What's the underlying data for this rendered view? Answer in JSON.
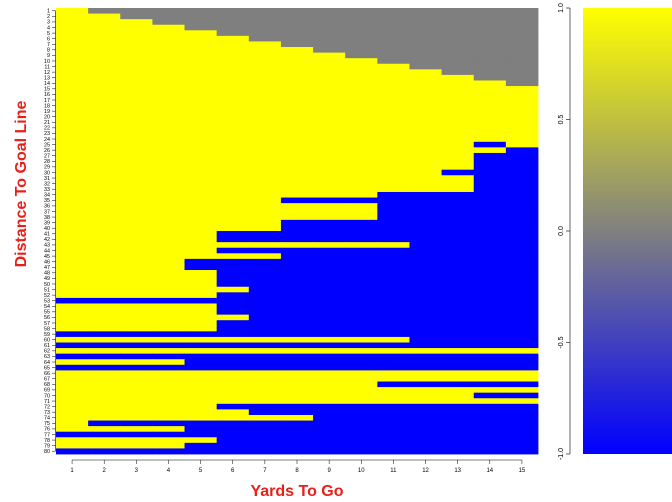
{
  "chart_data": {
    "type": "heatmap",
    "title": "",
    "xlabel": "Yards To Go",
    "ylabel": "Distance To Goal Line",
    "x_categories": [
      "1",
      "2",
      "3",
      "4",
      "5",
      "6",
      "7",
      "8",
      "9",
      "10",
      "11",
      "12",
      "13",
      "14",
      "15"
    ],
    "y_categories": [
      "1",
      "2",
      "3",
      "4",
      "5",
      "6",
      "7",
      "8",
      "9",
      "10",
      "11",
      "12",
      "13",
      "14",
      "15",
      "16",
      "17",
      "18",
      "19",
      "20",
      "21",
      "22",
      "23",
      "24",
      "25",
      "26",
      "27",
      "28",
      "29",
      "30",
      "31",
      "32",
      "33",
      "34",
      "35",
      "36",
      "37",
      "38",
      "39",
      "40",
      "41",
      "42",
      "43",
      "44",
      "45",
      "46",
      "47",
      "48",
      "49",
      "50",
      "51",
      "52",
      "53",
      "54",
      "55",
      "56",
      "57",
      "58",
      "59",
      "60",
      "61",
      "62",
      "63",
      "64",
      "65",
      "66",
      "67",
      "68",
      "69",
      "70",
      "71",
      "72",
      "73",
      "74",
      "75",
      "76",
      "77",
      "78",
      "79",
      "80"
    ],
    "value_legend": {
      "1": "yellow",
      "-1": "blue",
      "0": "gray (not possible: yards to go exceeds distance)"
    },
    "colorbar": {
      "range": [
        -1,
        1
      ],
      "ticks": [
        "1.0",
        "0.5",
        "0.0",
        "-0.5",
        "-1.0"
      ],
      "low_color": "#0000ff",
      "mid_color": "#808080",
      "high_color": "#ffff00"
    },
    "colors": {
      "yellow": "#ffff00",
      "blue": "#0000ff",
      "gray": "#7f7f7f",
      "title_red": "#e8201a"
    },
    "rows": [
      {
        "y": 1,
        "blue": [],
        "na_from": 2
      },
      {
        "y": 2,
        "blue": [],
        "na_from": 3
      },
      {
        "y": 3,
        "blue": [],
        "na_from": 4
      },
      {
        "y": 4,
        "blue": [],
        "na_from": 5
      },
      {
        "y": 5,
        "blue": [],
        "na_from": 6
      },
      {
        "y": 6,
        "blue": [],
        "na_from": 7
      },
      {
        "y": 7,
        "blue": [],
        "na_from": 8
      },
      {
        "y": 8,
        "blue": [],
        "na_from": 9
      },
      {
        "y": 9,
        "blue": [],
        "na_from": 10
      },
      {
        "y": 10,
        "blue": [],
        "na_from": 11
      },
      {
        "y": 11,
        "blue": [],
        "na_from": 12
      },
      {
        "y": 12,
        "blue": [],
        "na_from": 13
      },
      {
        "y": 13,
        "blue": [],
        "na_from": 14
      },
      {
        "y": 14,
        "blue": [],
        "na_from": 15
      },
      {
        "y": 25,
        "blue": [
          [
            14,
            14
          ]
        ]
      },
      {
        "y": 26,
        "blue": [
          [
            15,
            15
          ]
        ]
      },
      {
        "y": 27,
        "blue": [
          [
            14,
            15
          ]
        ]
      },
      {
        "y": 28,
        "blue": [
          [
            14,
            15
          ]
        ]
      },
      {
        "y": 29,
        "blue": [
          [
            14,
            15
          ]
        ]
      },
      {
        "y": 30,
        "blue": [
          [
            13,
            15
          ]
        ]
      },
      {
        "y": 31,
        "blue": [
          [
            14,
            15
          ]
        ]
      },
      {
        "y": 32,
        "blue": [
          [
            14,
            15
          ]
        ]
      },
      {
        "y": 33,
        "blue": [
          [
            14,
            15
          ]
        ]
      },
      {
        "y": 34,
        "blue": [
          [
            11,
            15
          ]
        ]
      },
      {
        "y": 35,
        "blue": [
          [
            8,
            15
          ]
        ]
      },
      {
        "y": 36,
        "blue": [
          [
            11,
            15
          ]
        ]
      },
      {
        "y": 37,
        "blue": [
          [
            11,
            12
          ],
          [
            13,
            15
          ]
        ]
      },
      {
        "y": 38,
        "blue": [
          [
            11,
            15
          ]
        ]
      },
      {
        "y": 39,
        "blue": [
          [
            8,
            15
          ]
        ]
      },
      {
        "y": 40,
        "blue": [
          [
            8,
            15
          ]
        ]
      },
      {
        "y": 41,
        "blue": [
          [
            6,
            15
          ]
        ]
      },
      {
        "y": 42,
        "blue": [
          [
            6,
            15
          ]
        ]
      },
      {
        "y": 43,
        "blue": [
          [
            12,
            15
          ]
        ]
      },
      {
        "y": 44,
        "blue": [
          [
            6,
            15
          ]
        ]
      },
      {
        "y": 45,
        "blue": [
          [
            8,
            15
          ]
        ]
      },
      {
        "y": 46,
        "blue": [
          [
            5,
            15
          ]
        ]
      },
      {
        "y": 47,
        "blue": [
          [
            5,
            15
          ]
        ]
      },
      {
        "y": 48,
        "blue": [
          [
            6,
            15
          ]
        ]
      },
      {
        "y": 49,
        "blue": [
          [
            6,
            15
          ]
        ]
      },
      {
        "y": 50,
        "blue": [
          [
            6,
            15
          ]
        ]
      },
      {
        "y": 51,
        "blue": [
          [
            7,
            15
          ]
        ]
      },
      {
        "y": 52,
        "blue": [
          [
            6,
            15
          ]
        ]
      },
      {
        "y": 53,
        "blue": [
          [
            1,
            15
          ]
        ]
      },
      {
        "y": 54,
        "blue": [
          [
            6,
            15
          ]
        ]
      },
      {
        "y": 55,
        "blue": [
          [
            6,
            15
          ]
        ]
      },
      {
        "y": 56,
        "blue": [
          [
            7,
            15
          ]
        ]
      },
      {
        "y": 57,
        "blue": [
          [
            6,
            15
          ]
        ]
      },
      {
        "y": 58,
        "blue": [
          [
            6,
            15
          ]
        ]
      },
      {
        "y": 59,
        "blue": [
          [
            1,
            15
          ]
        ]
      },
      {
        "y": 60,
        "blue": [
          [
            12,
            15
          ]
        ]
      },
      {
        "y": 61,
        "blue": [
          [
            1,
            15
          ]
        ]
      },
      {
        "y": 62,
        "blue": []
      },
      {
        "y": 63,
        "blue": [
          [
            1,
            15
          ]
        ]
      },
      {
        "y": 64,
        "blue": [
          [
            5,
            15
          ]
        ]
      },
      {
        "y": 65,
        "blue": [
          [
            1,
            15
          ]
        ]
      },
      {
        "y": 66,
        "blue": []
      },
      {
        "y": 67,
        "blue": []
      },
      {
        "y": 68,
        "blue": [
          [
            11,
            15
          ]
        ]
      },
      {
        "y": 69,
        "blue": []
      },
      {
        "y": 70,
        "blue": [
          [
            14,
            15
          ]
        ]
      },
      {
        "y": 71,
        "blue": []
      },
      {
        "y": 72,
        "blue": [
          [
            6,
            15
          ]
        ]
      },
      {
        "y": 73,
        "blue": [
          [
            7,
            15
          ]
        ]
      },
      {
        "y": 74,
        "blue": [
          [
            9,
            15
          ]
        ]
      },
      {
        "y": 75,
        "blue": [
          [
            2,
            15
          ]
        ]
      },
      {
        "y": 76,
        "blue": [
          [
            5,
            15
          ]
        ]
      },
      {
        "y": 77,
        "blue": [
          [
            1,
            15
          ]
        ]
      },
      {
        "y": 78,
        "blue": [
          [
            6,
            15
          ]
        ]
      },
      {
        "y": 79,
        "blue": [
          [
            5,
            15
          ]
        ]
      },
      {
        "y": 80,
        "blue": [
          [
            1,
            15
          ]
        ]
      }
    ]
  }
}
